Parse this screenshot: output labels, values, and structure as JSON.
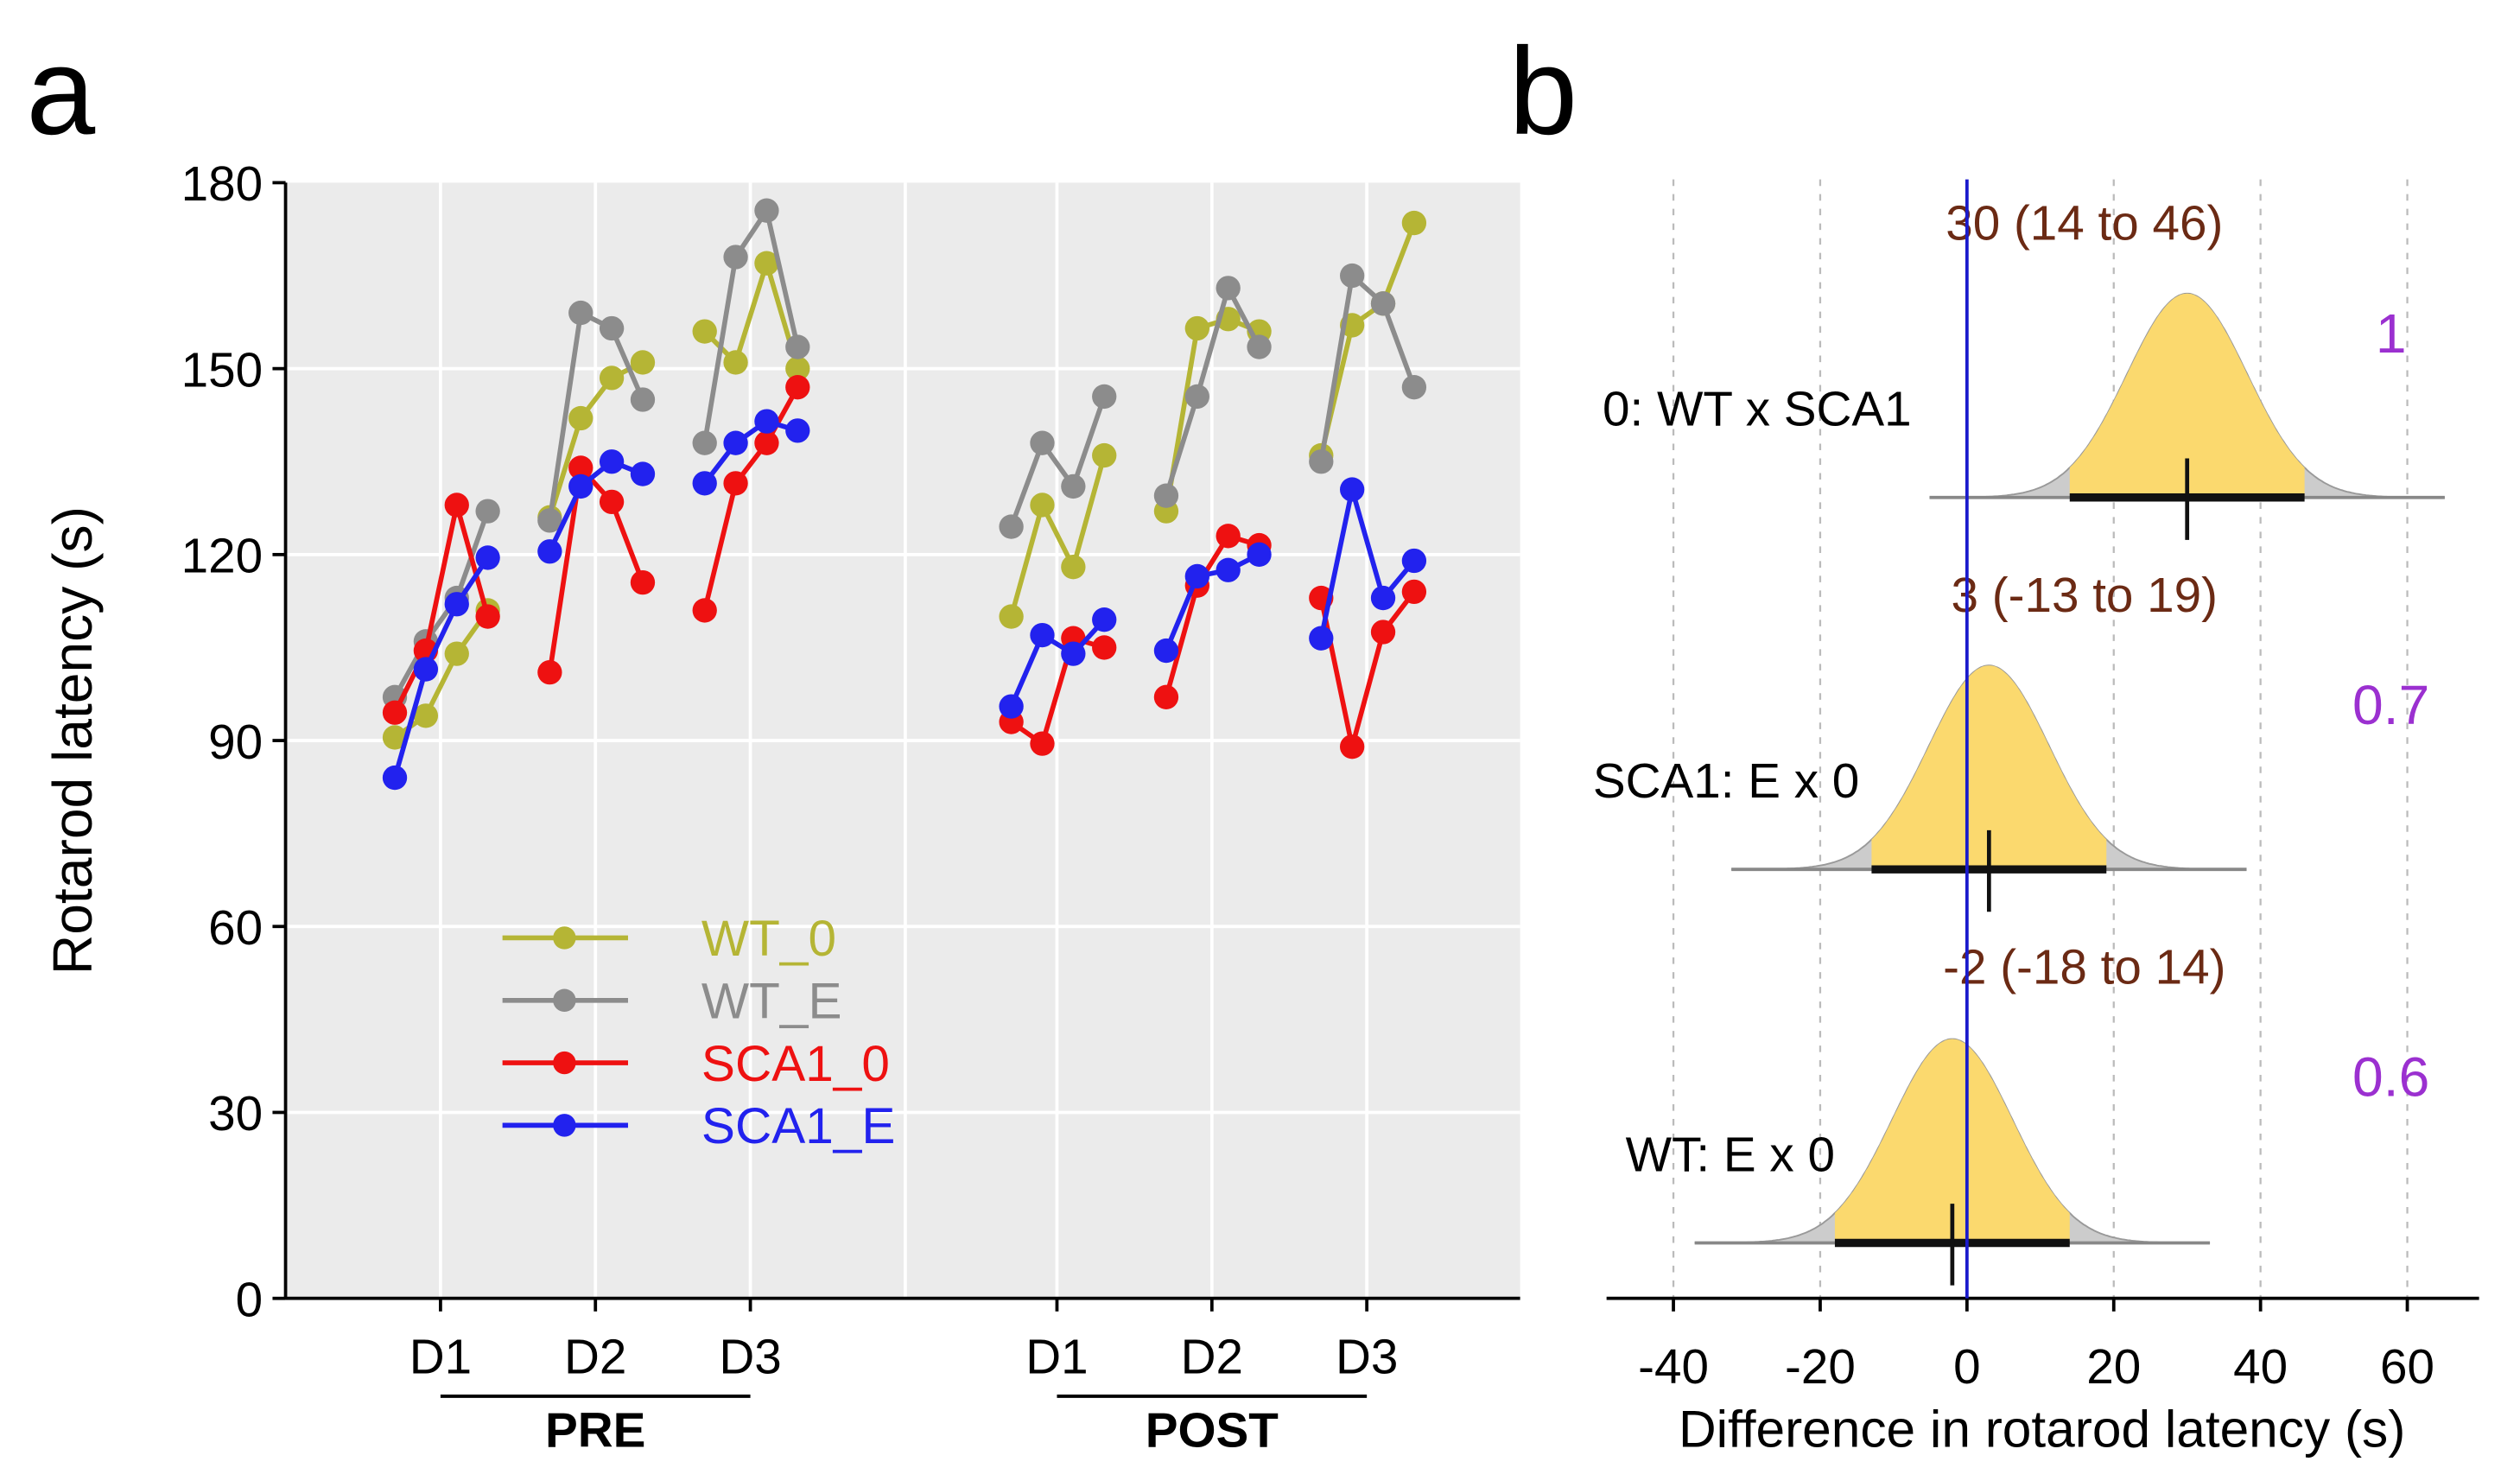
{
  "panel_labels": {
    "a": "a",
    "b": "b"
  },
  "colors": {
    "WT_0": "#b5b535",
    "WT_E": "#8c8c8c",
    "SCA1_0": "#ee1111",
    "SCA1_E": "#2222ee",
    "panel_bg": "#ebebeb",
    "density_fill": "#fbd96e",
    "tail_fill": "#cccccc",
    "zero_line": "#1a1acc",
    "interval_text": "#6b2a14",
    "prob_text": "#9b30d0"
  },
  "chart_data": [
    {
      "type": "line",
      "ylabel": "Rotarod latency (s)",
      "ylim": [
        0,
        180
      ],
      "yticks": [
        "0",
        "30",
        "60",
        "90",
        "120",
        "150",
        "180"
      ],
      "grid": true,
      "legend_placement": "bottom-left",
      "groups": [
        {
          "label": "PRE",
          "days": [
            "D1",
            "D2",
            "D3"
          ]
        },
        {
          "label": "POST",
          "days": [
            "D1",
            "D2",
            "D3"
          ]
        }
      ],
      "points_per_day": 4,
      "series": [
        {
          "name": "WT_0",
          "values": [
            [
              90.5,
              94,
              104,
              111
            ],
            [
              126,
              142,
              148.5,
              151
            ],
            [
              156,
              151,
              167,
              150
            ],
            [
              110,
              128,
              118,
              136
            ],
            [
              127,
              156.5,
              158,
              156
            ],
            [
              136,
              157,
              160.5,
              173.5
            ]
          ]
        },
        {
          "name": "WT_E",
          "values": [
            [
              97,
              106,
              113,
              127
            ],
            [
              125.5,
              159,
              156.5,
              145
            ],
            [
              138,
              168,
              175.5,
              153.5
            ],
            [
              124.5,
              138,
              131,
              145.5
            ],
            [
              129.5,
              145.5,
              163,
              153.5
            ],
            [
              135,
              165,
              160.5,
              147
            ]
          ]
        },
        {
          "name": "SCA1_0",
          "values": [
            [
              94.5,
              104.5,
              128,
              110
            ],
            [
              101,
              134,
              128.5,
              115.5
            ],
            [
              111,
              131.5,
              138,
              147
            ],
            [
              93,
              89.5,
              106.5,
              105
            ],
            [
              97,
              115,
              123,
              121.5
            ],
            [
              113,
              89,
              107.5,
              114
            ]
          ]
        },
        {
          "name": "SCA1_E",
          "values": [
            [
              84,
              101.5,
              112,
              119.5
            ],
            [
              120.5,
              131,
              135,
              133
            ],
            [
              131.5,
              138,
              141.5,
              140
            ],
            [
              95.5,
              107,
              104,
              109.5
            ],
            [
              104.5,
              116.5,
              117.5,
              120
            ],
            [
              106.5,
              130.5,
              113,
              119
            ]
          ]
        }
      ]
    },
    {
      "type": "density",
      "xlabel": "Difference in rotarod latency (s)",
      "xlim": [
        -45,
        70
      ],
      "xticks": [
        "-40",
        "-20",
        "0",
        "20",
        "40",
        "60"
      ],
      "reference_line": 0,
      "rows": [
        {
          "label": "0: WT x SCA1",
          "estimate": 30,
          "ci_low": 14,
          "ci_high": 46,
          "interval_text": "30 (14 to 46)",
          "probability": "1"
        },
        {
          "label": "SCA1: E x 0",
          "estimate": 3,
          "ci_low": -13,
          "ci_high": 19,
          "interval_text": "3 (-13 to 19)",
          "probability": "0.7"
        },
        {
          "label": "WT: E x 0",
          "estimate": -2,
          "ci_low": -18,
          "ci_high": 14,
          "interval_text": "-2 (-18 to 14)",
          "probability": "0.6"
        }
      ]
    }
  ]
}
